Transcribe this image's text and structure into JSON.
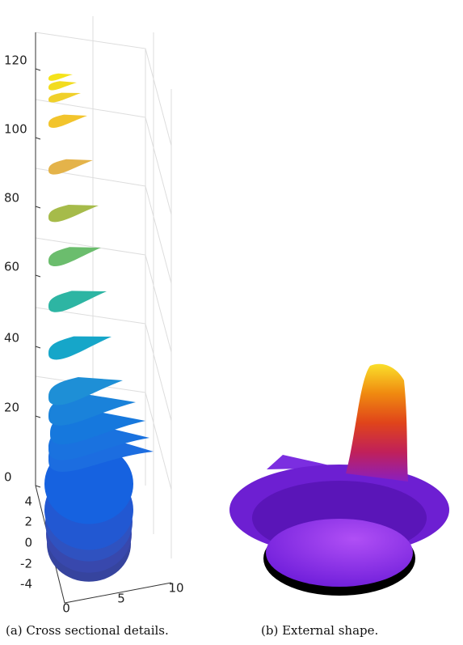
{
  "panel_a": {
    "z_ticks": [
      120,
      100,
      80,
      60,
      40,
      20,
      0
    ],
    "y_ticks": [
      4,
      2,
      0,
      -2,
      -4
    ],
    "x_ticks": [
      0,
      5,
      10
    ],
    "caption": "(a) Cross sectional details."
  },
  "panel_b": {
    "caption": "(b) External shape."
  }
}
